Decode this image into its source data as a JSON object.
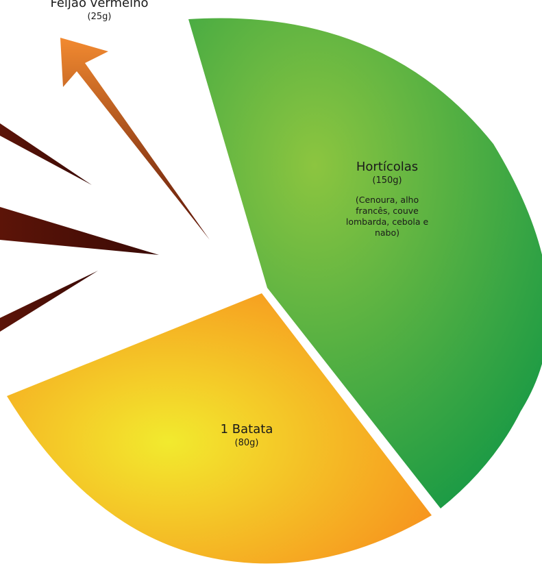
{
  "colors": {
    "green_light": "#8cc540",
    "green_dark": "#1a9a45",
    "yellow": "#f2ea2e",
    "orange": "#f7931e",
    "arrow_light": "#f28a30",
    "arrow_dark": "#5c1408"
  },
  "chart_data": {
    "type": "pie",
    "slices": [
      {
        "label": "Hortícolas",
        "amount": "(150g)",
        "note": "(Cenoura, alho francês, couve lombarda, cebola e nabo)",
        "value": 150,
        "exploded": true
      },
      {
        "label": "1 Batata",
        "amount": "(80g)",
        "value": 80,
        "exploded": true
      }
    ],
    "arrows": [
      {
        "label": "Feijão vermelho",
        "amount": "(25g)",
        "value": 25,
        "highlighted": true
      },
      {
        "highlighted": false
      },
      {
        "highlighted": false
      },
      {
        "highlighted": false
      }
    ]
  }
}
